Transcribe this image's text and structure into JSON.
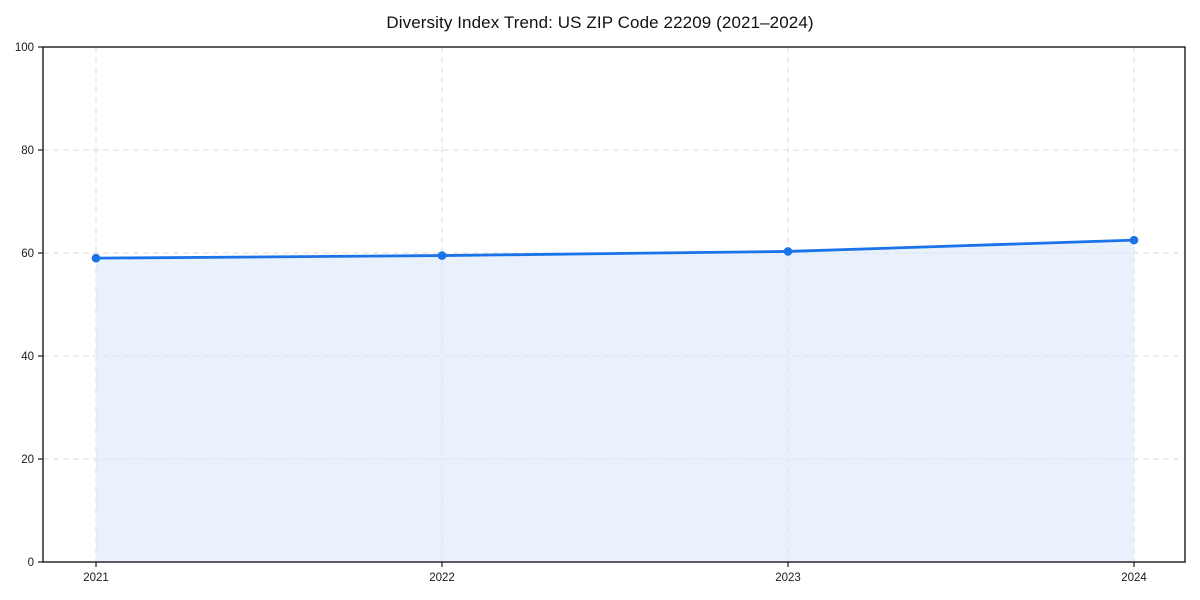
{
  "chart_data": {
    "type": "area",
    "title": "Diversity Index Trend: US ZIP Code 22209 (2021–2024)",
    "x": [
      2021,
      2022,
      2023,
      2024
    ],
    "series": [
      {
        "name": "Diversity Index",
        "values": [
          59.0,
          59.5,
          60.3,
          62.5
        ]
      }
    ],
    "xlabel": "",
    "ylabel": "",
    "ylim": [
      0,
      100
    ],
    "yticks": [
      0,
      20,
      40,
      60,
      80,
      100
    ],
    "grid": "dashed",
    "legend": "none",
    "line_color": "#1a73e8",
    "marker_color": "#1a73e8",
    "fill_color": "#dbe7fb",
    "grid_color": "#dedede",
    "spine_color": "#1a1a1a"
  }
}
